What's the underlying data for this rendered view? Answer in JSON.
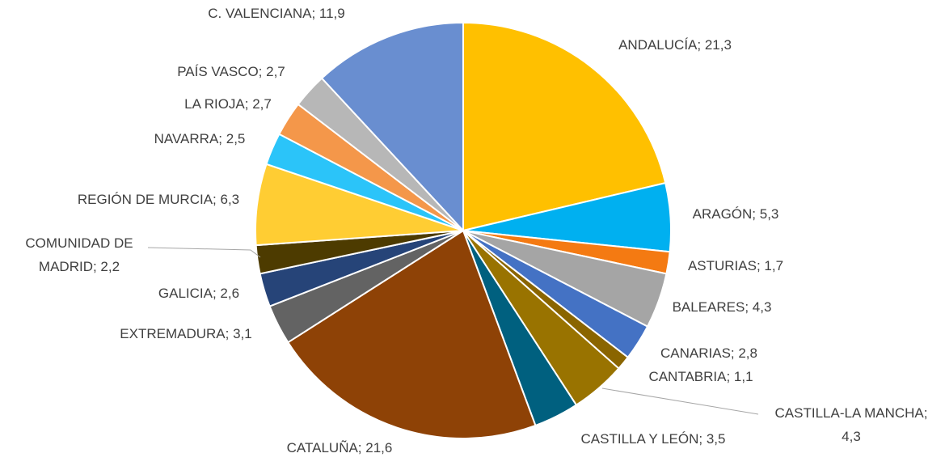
{
  "chart_data": {
    "type": "pie",
    "values": [
      21.3,
      5.3,
      1.7,
      4.3,
      2.8,
      1.1,
      4.3,
      3.5,
      21.6,
      3.1,
      2.6,
      2.2,
      6.3,
      2.5,
      2.7,
      2.7,
      11.9
    ],
    "value_labels": [
      "ANDALUCÍA; 21,3",
      "ARAGÓN; 5,3",
      "ASTURIAS; 1,7",
      "BALEARES; 4,3",
      "CANARIAS; 2,8",
      "CANTABRIA; 1,1",
      "CASTILLA-LA MANCHA;\n4,3",
      "CASTILLA Y LEÓN; 3,5",
      "CATALUÑA; 21,6",
      "EXTREMADURA; 3,1",
      "GALICIA; 2,6",
      "COMUNIDAD DE\nMADRID; 2,2",
      "REGIÓN DE MURCIA; 6,3",
      "NAVARRA; 2,5",
      "LA RIOJA; 2,7",
      "PAÍS VASCO; 2,7",
      "C. VALENCIANA; 11,9"
    ],
    "colors": [
      "#FFC000",
      "#00B0F0",
      "#F47A12",
      "#A5A5A5",
      "#4472C4",
      "#8A6500",
      "#997300",
      "#00607F",
      "#8E4206",
      "#636363",
      "#264478",
      "#4D3B00",
      "#FFCD33",
      "#2BC4F9",
      "#F4974A",
      "#B7B7B7",
      "#698ED0"
    ]
  }
}
